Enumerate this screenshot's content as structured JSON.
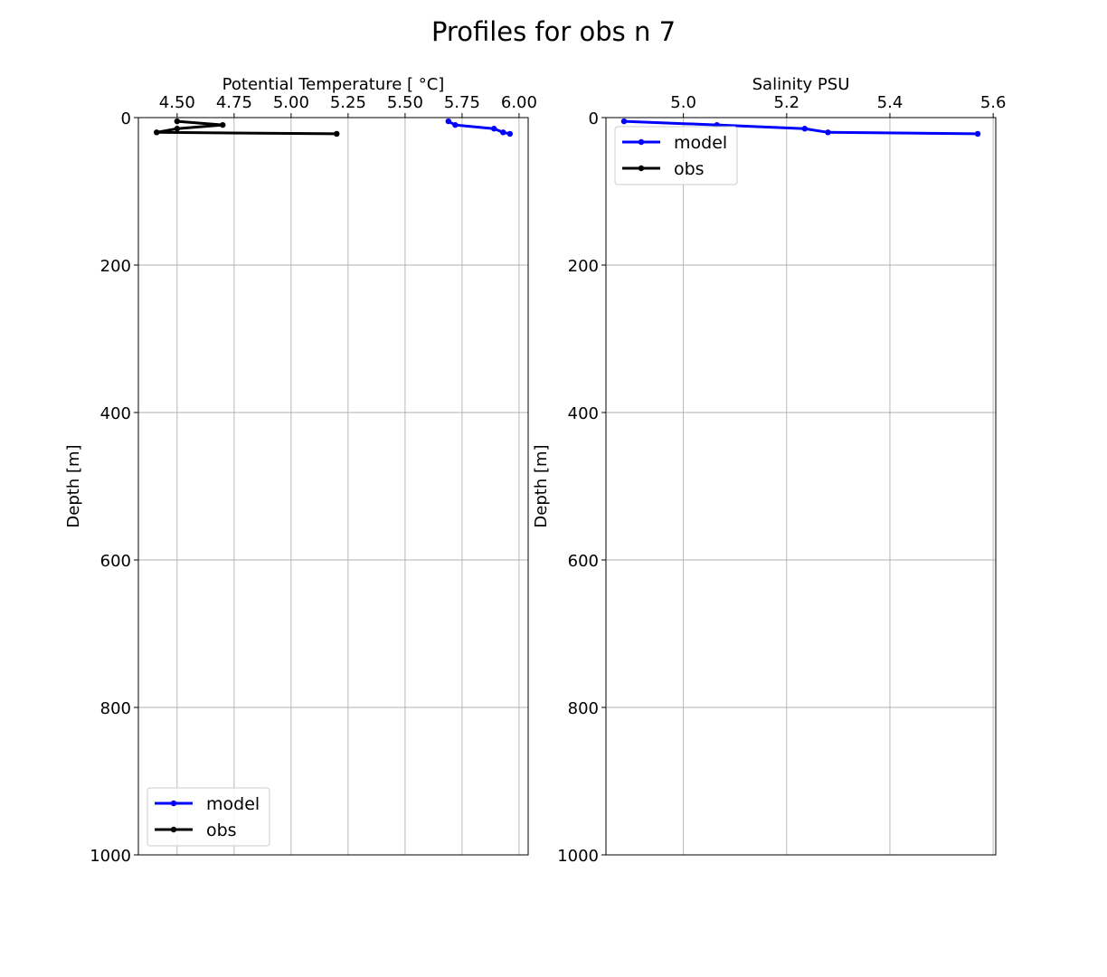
{
  "figure": {
    "title": "Profiles for obs n 7"
  },
  "chart_data": [
    {
      "type": "line",
      "title": "",
      "xlabel": "Potential Temperature [$^\\circ$C]",
      "xlabel_display": "Potential Temperature [ °C]",
      "ylabel": "Depth [m]",
      "xlim": [
        4.33,
        6.04
      ],
      "ylim": [
        1000,
        0
      ],
      "x_ticks": [
        4.5,
        4.75,
        5.0,
        5.25,
        5.5,
        5.75,
        6.0
      ],
      "x_tick_labels": [
        "4.50",
        "4.75",
        "5.00",
        "5.25",
        "5.50",
        "5.75",
        "6.00"
      ],
      "y_ticks": [
        0,
        200,
        400,
        600,
        800,
        1000
      ],
      "y_tick_labels": [
        "0",
        "200",
        "400",
        "600",
        "800",
        "1000"
      ],
      "x_axis_position": "top",
      "grid": true,
      "legend_position": "lower-left",
      "series": [
        {
          "name": "model",
          "color": "#0000ff",
          "marker": "circle",
          "x": [
            5.69,
            5.72,
            5.89,
            5.93,
            5.96
          ],
          "y": [
            5,
            10,
            15,
            20,
            22
          ]
        },
        {
          "name": "obs",
          "color": "#000000",
          "marker": "circle",
          "x": [
            4.5,
            4.7,
            4.5,
            4.41,
            5.2
          ],
          "y": [
            5,
            10,
            15,
            20,
            22
          ]
        }
      ]
    },
    {
      "type": "line",
      "title": "",
      "xlabel": "Salinity PSU",
      "ylabel": "Depth [m]",
      "xlim": [
        4.85,
        5.605
      ],
      "ylim": [
        1000,
        0
      ],
      "x_ticks": [
        5.0,
        5.2,
        5.4,
        5.6
      ],
      "x_tick_labels": [
        "5.0",
        "5.2",
        "5.4",
        "5.6"
      ],
      "y_ticks": [
        0,
        200,
        400,
        600,
        800,
        1000
      ],
      "y_tick_labels": [
        "0",
        "200",
        "400",
        "600",
        "800",
        "1000"
      ],
      "x_axis_position": "top",
      "grid": true,
      "legend_position": "upper-left",
      "series": [
        {
          "name": "model",
          "color": "#0000ff",
          "marker": "circle",
          "x": [
            4.885,
            5.065,
            5.235,
            5.28,
            5.57
          ],
          "y": [
            5,
            10,
            15,
            20,
            22
          ]
        },
        {
          "name": "obs",
          "color": "#000000",
          "marker": "circle",
          "x": [],
          "y": []
        }
      ]
    }
  ]
}
